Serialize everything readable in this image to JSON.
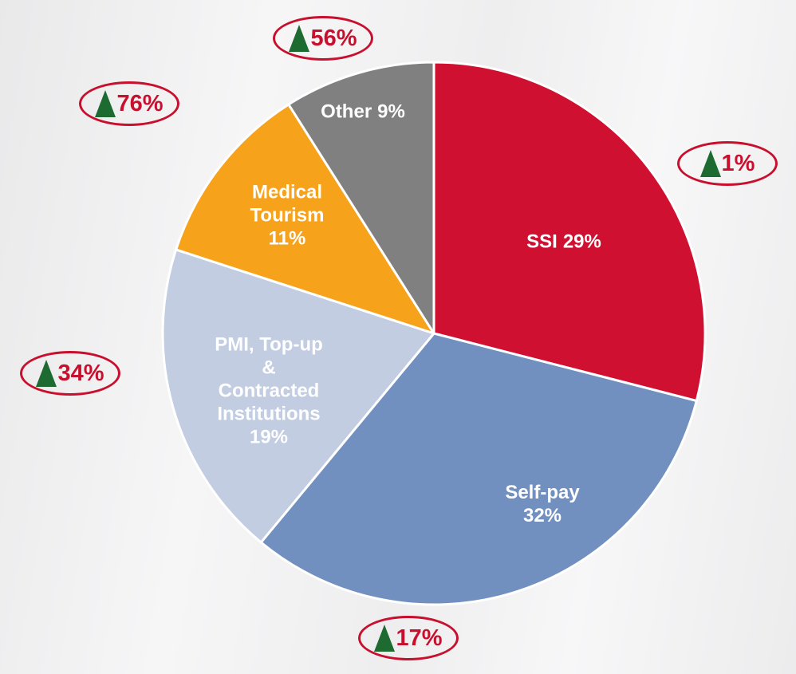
{
  "chart_data": {
    "type": "pie",
    "categories": [
      "SSI",
      "Self-pay",
      "PMI, Top-up\n&\nContracted\nInstitutions",
      "Medical\nTourism",
      "Other"
    ],
    "values": [
      29,
      32,
      19,
      11,
      9
    ],
    "value_labels": [
      "29%",
      "32%",
      "19%",
      "11%",
      "9%"
    ],
    "colors": [
      "#d01030",
      "#7290bf",
      "#c2cde2",
      "#f7a21b",
      "#808080"
    ],
    "growth": [
      1,
      17,
      34,
      76,
      56
    ],
    "growth_labels": [
      "1%",
      "17%",
      "34%",
      "76%",
      "56%"
    ]
  }
}
